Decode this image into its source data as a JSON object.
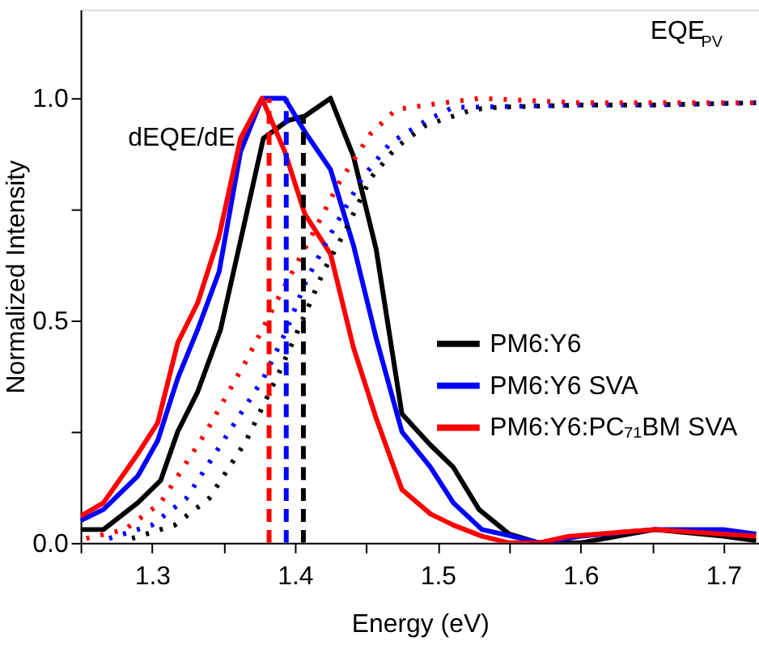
{
  "chart_data": {
    "type": "line",
    "xlabel": "Energy (eV)",
    "ylabel": "Normalized Intensity",
    "annotations": [
      "dEQE/dE",
      "EQE$_{PV}$"
    ],
    "xlim": [
      1.25,
      1.725
    ],
    "ylim": [
      0,
      1.2
    ],
    "xticks": [
      {
        "value": 1.25,
        "label": null
      },
      1.3,
      {
        "value": 1.35,
        "label": null
      },
      1.4,
      {
        "value": 1.45,
        "label": null
      },
      1.5,
      {
        "value": 1.55,
        "label": null
      },
      1.6,
      {
        "value": 1.65,
        "label": null
      },
      1.7
    ],
    "yticks": [
      {
        "value": 0,
        "label": "0.0"
      },
      {
        "value": 0.25,
        "label": null
      },
      0.5,
      {
        "value": 0.75,
        "label": null
      },
      {
        "value": 1,
        "label": "1.0"
      }
    ],
    "grid": false,
    "legend": "right",
    "series": [
      {
        "name": "PM6:Y6",
        "color": "#000000",
        "line_style": "solid",
        "x": [
          1.25,
          1.266,
          1.29,
          1.306,
          1.318,
          1.332,
          1.348,
          1.362,
          1.378,
          1.395,
          1.407,
          1.425,
          1.441,
          1.457,
          1.475,
          1.495,
          1.511,
          1.529,
          1.55,
          1.571,
          1.6,
          1.652,
          1.7,
          1.723
        ],
        "values": [
          0.03,
          0.03,
          0.09,
          0.14,
          0.25,
          0.34,
          0.48,
          0.68,
          0.91,
          0.95,
          0.96,
          1.0,
          0.87,
          0.66,
          0.29,
          0.22,
          0.17,
          0.075,
          0.02,
          0.0,
          0.0,
          0.03,
          0.015,
          0.005
        ]
      },
      {
        "name": "PM6:Y6 SVA",
        "color": "#0000ff",
        "line_style": "solid",
        "x": [
          1.25,
          1.266,
          1.29,
          1.304,
          1.318,
          1.332,
          1.347,
          1.362,
          1.377,
          1.393,
          1.408,
          1.425,
          1.441,
          1.457,
          1.475,
          1.495,
          1.511,
          1.531,
          1.552,
          1.571,
          1.6,
          1.652,
          1.7,
          1.723
        ],
        "values": [
          0.05,
          0.075,
          0.15,
          0.23,
          0.37,
          0.48,
          0.61,
          0.88,
          1.0,
          1.0,
          0.92,
          0.84,
          0.67,
          0.46,
          0.25,
          0.17,
          0.09,
          0.03,
          0.015,
          0.0,
          0.015,
          0.03,
          0.03,
          0.02
        ]
      },
      {
        "name": "PM6:Y6:PC₇₁BM SVA",
        "color": "#ff0000",
        "line_style": "solid",
        "x": [
          1.25,
          1.266,
          1.29,
          1.304,
          1.318,
          1.332,
          1.347,
          1.362,
          1.377,
          1.393,
          1.407,
          1.425,
          1.441,
          1.457,
          1.475,
          1.495,
          1.511,
          1.531,
          1.55,
          1.571,
          1.592,
          1.652,
          1.723
        ],
        "values": [
          0.06,
          0.09,
          0.2,
          0.27,
          0.45,
          0.54,
          0.69,
          0.91,
          1.0,
          0.88,
          0.74,
          0.65,
          0.44,
          0.28,
          0.12,
          0.065,
          0.04,
          0.015,
          0.0,
          0.0,
          0.015,
          0.03,
          0.015
        ]
      },
      {
        "color": "#000000",
        "line_style": "dotted",
        "x": [
          1.286,
          1.316,
          1.34,
          1.366,
          1.39,
          1.408,
          1.42,
          1.435,
          1.453,
          1.471,
          1.492,
          1.511,
          1.525,
          1.543,
          1.6,
          1.65,
          1.723
        ],
        "values": [
          0.01,
          0.04,
          0.1,
          0.23,
          0.39,
          0.52,
          0.61,
          0.7,
          0.82,
          0.89,
          0.94,
          0.96,
          0.975,
          0.98,
          0.985,
          0.985,
          0.99
        ]
      },
      {
        "color": "#0000ff",
        "line_style": "dotted",
        "x": [
          1.27,
          1.3,
          1.324,
          1.35,
          1.378,
          1.393,
          1.408,
          1.426,
          1.447,
          1.467,
          1.492,
          1.511,
          1.523,
          1.6,
          1.65,
          1.723
        ],
        "values": [
          0.01,
          0.04,
          0.1,
          0.23,
          0.37,
          0.47,
          0.59,
          0.7,
          0.82,
          0.9,
          0.95,
          0.98,
          0.98,
          0.985,
          0.985,
          0.99
        ]
      },
      {
        "color": "#ff0000",
        "line_style": "dotted",
        "x": [
          1.254,
          1.281,
          1.306,
          1.338,
          1.366,
          1.39,
          1.41,
          1.431,
          1.453,
          1.471,
          1.492,
          1.529,
          1.6,
          1.65,
          1.723
        ],
        "values": [
          0.01,
          0.03,
          0.09,
          0.25,
          0.41,
          0.56,
          0.68,
          0.81,
          0.92,
          0.975,
          0.985,
          1.0,
          0.99,
          0.99,
          0.99
        ]
      },
      {
        "color": "#ff0000",
        "line_style": "dashed",
        "x": [
          1.382,
          1.382
        ],
        "values": [
          0,
          1.0
        ]
      },
      {
        "color": "#0000ff",
        "line_style": "dashed",
        "x": [
          1.394,
          1.394
        ],
        "values": [
          0,
          1.0
        ]
      },
      {
        "color": "#000000",
        "line_style": "dashed",
        "x": [
          1.406,
          1.406
        ],
        "values": [
          0,
          0.96
        ]
      }
    ]
  }
}
